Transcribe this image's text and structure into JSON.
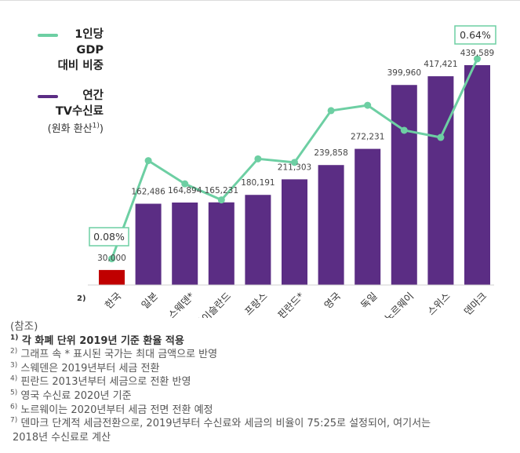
{
  "legend": {
    "gdp": {
      "lines": [
        "1인당",
        "GDP",
        "대비 비중"
      ],
      "color": "#6dcfa3"
    },
    "fee": {
      "lines": [
        "연간",
        "TV수신료"
      ],
      "sub": "(원화 환산",
      "sub_marker": "1)",
      "sub_close": ")",
      "color": "#5b2d84"
    }
  },
  "chart_data": {
    "type": "bar",
    "categories": [
      "한국",
      "일본",
      "스웨덴*",
      "아이슬란드",
      "프랑스",
      "핀란드*",
      "영국",
      "독일",
      "노르웨이",
      "스위스",
      "덴마크"
    ],
    "series": [
      {
        "name": "연간 TV수신료 (원화 환산)",
        "type": "bar",
        "values": [
          30000,
          162486,
          164894,
          165231,
          180191,
          211303,
          239858,
          272231,
          399960,
          417421,
          439589
        ],
        "labels": [
          "30,000",
          "162,486",
          "164,894",
          "165,231",
          "180,191",
          "211,303",
          "239,858",
          "272,231",
          "399,960",
          "417,421",
          "439,589"
        ]
      },
      {
        "name": "1인당 GDP 대비 비중",
        "type": "line",
        "unit": "%",
        "values": [
          0.08,
          0.355,
          0.29,
          0.245,
          0.36,
          0.35,
          0.495,
          0.51,
          0.44,
          0.42,
          0.64
        ]
      }
    ],
    "highlight_labels": [
      "0.08%",
      "0.64%"
    ],
    "axis_note": "2)",
    "bar_color": "#5b2d84",
    "highlight_bar_color": "#c00000",
    "line_color": "#6dcfa3",
    "ylim_bar": [
      0,
      470000
    ],
    "ylim_line": [
      0,
      0.7
    ]
  },
  "notes": {
    "title": "(참조)",
    "items": [
      {
        "marker": "1)",
        "text": "각 화폐 단위 2019년 기준 환율 적용"
      },
      {
        "marker": "2)",
        "text": "그래프 속 * 표시된 국가는 최대 금액으로 반영"
      },
      {
        "marker": "3)",
        "text": "스웨덴은 2019년부터 세금 전환"
      },
      {
        "marker": "4)",
        "text": "핀란드 2013년부터 세금으로 전환 반영"
      },
      {
        "marker": "5)",
        "text": "영국 수신료 2020년 기준"
      },
      {
        "marker": "6)",
        "text": "노르웨이는 2020년부터 세금 전면 전환 예정"
      },
      {
        "marker": "7)",
        "text": "덴마크 단계적 세금전환으로, 2019년부터 수신료와 세금의 비율이 75:25로 설정되어, 여기서는"
      }
    ],
    "continuation": "2018년 수신료로 계산"
  }
}
